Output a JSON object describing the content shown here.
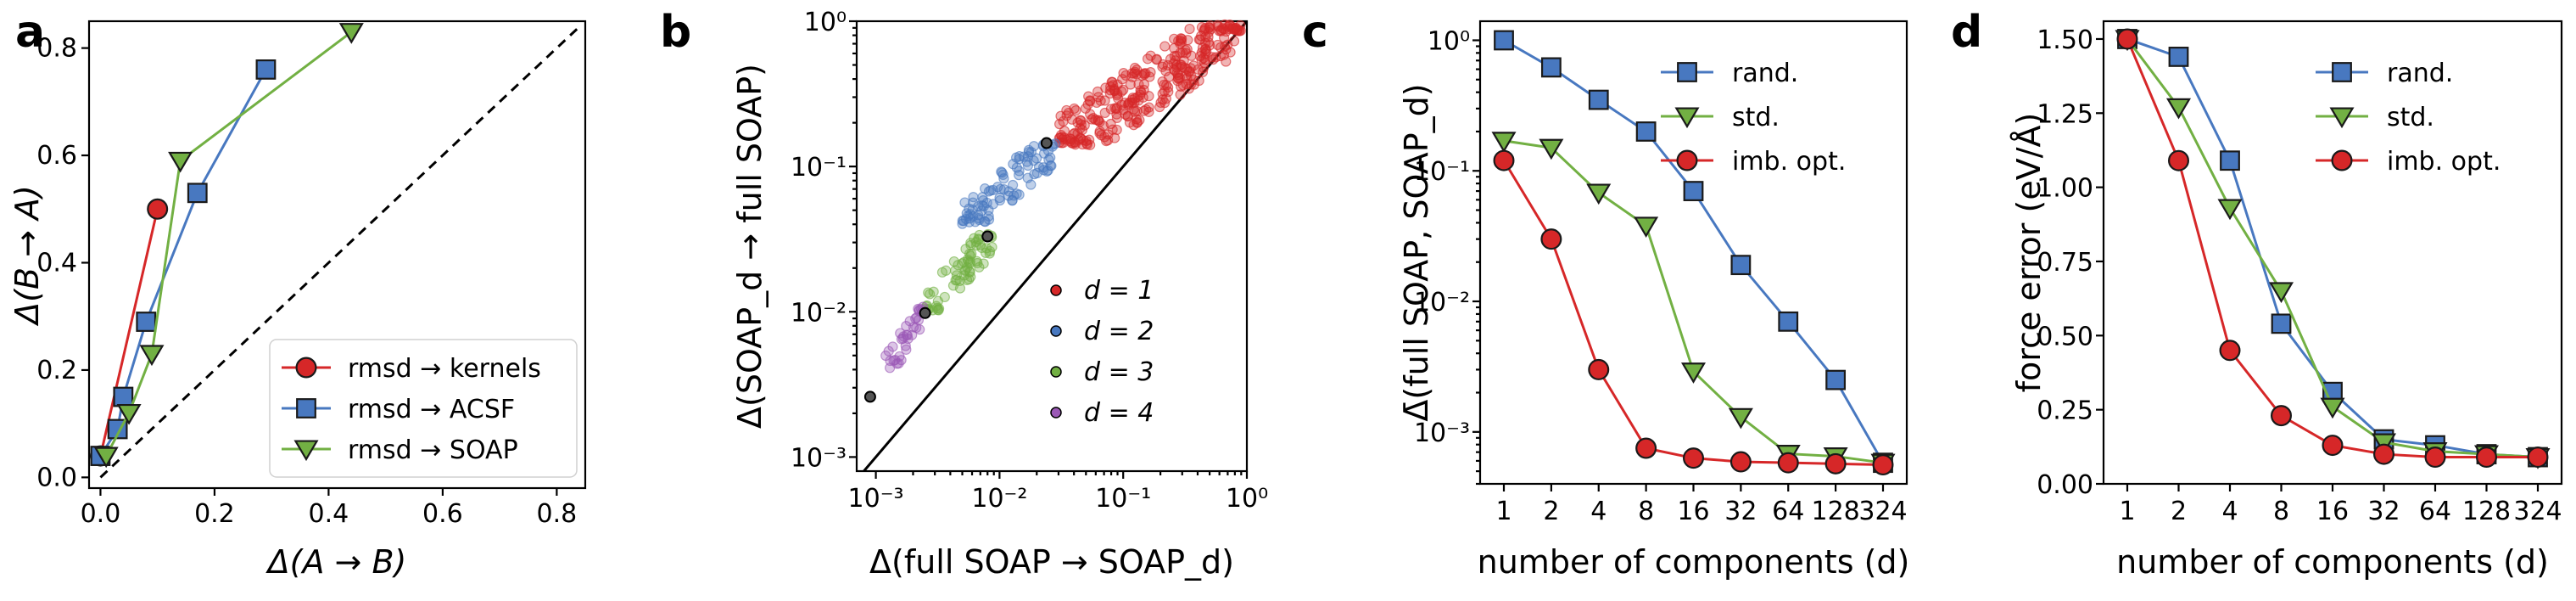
{
  "colors": {
    "red": "#d62728",
    "blue": "#4878c0",
    "green": "#72b043",
    "purple": "#9b59b6"
  },
  "chart_data": [
    {
      "id": "a",
      "type": "line",
      "panel_label": "a",
      "xlabel": "Δ(A → B)",
      "ylabel": "Δ(B → A)",
      "xlim": [
        -0.02,
        0.85
      ],
      "ylim": [
        -0.02,
        0.85
      ],
      "xticks": [
        "0.0",
        "0.2",
        "0.4",
        "0.6",
        "0.8"
      ],
      "yticks": [
        "0.0",
        "0.2",
        "0.4",
        "0.6",
        "0.8"
      ],
      "diagonal": true,
      "legend": {
        "position": "lower-right",
        "labels": [
          "rmsd → kernels",
          "rmsd → ACSF",
          "rmsd → SOAP"
        ]
      },
      "series": [
        {
          "name": "rmsd → kernels",
          "marker": "circle",
          "color": "red",
          "x": [
            0.0,
            0.1
          ],
          "y": [
            0.04,
            0.5
          ]
        },
        {
          "name": "rmsd → ACSF",
          "marker": "square",
          "color": "blue",
          "x": [
            0.0,
            0.03,
            0.04,
            0.08,
            0.17,
            0.29
          ],
          "y": [
            0.04,
            0.09,
            0.15,
            0.29,
            0.53,
            0.76
          ]
        },
        {
          "name": "rmsd → SOAP",
          "marker": "tri-down",
          "color": "green",
          "x": [
            0.01,
            0.05,
            0.09,
            0.14,
            0.44
          ],
          "y": [
            0.04,
            0.12,
            0.23,
            0.59,
            0.83
          ]
        }
      ]
    },
    {
      "id": "b",
      "type": "scatter",
      "panel_label": "b",
      "xlabel": "Δ(full SOAP → SOAP_d)",
      "ylabel": "Δ(SOAP_d → full SOAP)",
      "xscale": "log",
      "yscale": "log",
      "xlim": [
        0.0007,
        1.0
      ],
      "ylim": [
        0.0008,
        1.0
      ],
      "xticks": [
        "10⁻³",
        "10⁻²",
        "10⁻¹",
        "10⁰"
      ],
      "yticks": [
        "10⁻³",
        "10⁻²",
        "10⁻¹",
        "10⁰"
      ],
      "diagonal": true,
      "legend": {
        "position": "lower-right",
        "labels": [
          "d = 1",
          "d = 2",
          "d = 3",
          "d = 4"
        ]
      },
      "clusters": [
        {
          "name": "d = 1",
          "color": "red",
          "x_range": [
            0.03,
            0.9
          ],
          "y_range": [
            0.14,
            0.95
          ],
          "count": 300
        },
        {
          "name": "d = 2",
          "color": "blue",
          "x_range": [
            0.005,
            0.03
          ],
          "y_range": [
            0.04,
            0.15
          ],
          "count": 90
        },
        {
          "name": "d = 3",
          "color": "green",
          "x_range": [
            0.0025,
            0.009
          ],
          "y_range": [
            0.01,
            0.035
          ],
          "count": 70
        },
        {
          "name": "d = 4",
          "color": "purple",
          "x_range": [
            0.0012,
            0.0025
          ],
          "y_range": [
            0.004,
            0.011
          ],
          "count": 35
        }
      ],
      "highlighted_points": [
        {
          "x": 0.0009,
          "y": 0.0026
        },
        {
          "x": 0.0025,
          "y": 0.0098
        },
        {
          "x": 0.008,
          "y": 0.033
        },
        {
          "x": 0.024,
          "y": 0.145
        }
      ]
    },
    {
      "id": "c",
      "type": "line",
      "panel_label": "c",
      "xlabel": "number of components (d)",
      "ylabel": "Δ̄(full SOAP, SOAP_d)",
      "yscale": "log",
      "ylim": [
        0.0004,
        1.4
      ],
      "categories": [
        "1",
        "2",
        "4",
        "8",
        "16",
        "32",
        "64",
        "128",
        "324"
      ],
      "yticks": [
        "10⁰",
        "10⁻¹",
        "10⁻²",
        "10⁻³"
      ],
      "legend": {
        "position": "top-right",
        "labels": [
          "rand.",
          "std.",
          "imb. opt."
        ]
      },
      "series": [
        {
          "name": "rand.",
          "marker": "square",
          "color": "blue",
          "values": [
            1.0,
            0.62,
            0.35,
            0.2,
            0.07,
            0.019,
            0.007,
            0.0025,
            0.00058
          ]
        },
        {
          "name": "std.",
          "marker": "tri-down",
          "color": "green",
          "values": [
            0.17,
            0.15,
            0.068,
            0.038,
            0.0029,
            0.0013,
            0.00068,
            0.00065,
            0.00058
          ]
        },
        {
          "name": "imb. opt.",
          "marker": "circle",
          "color": "red",
          "values": [
            0.12,
            0.03,
            0.003,
            0.00075,
            0.00063,
            0.00059,
            0.00058,
            0.00057,
            0.00056
          ]
        }
      ]
    },
    {
      "id": "d",
      "type": "line",
      "panel_label": "d",
      "xlabel": "number of components (d)",
      "ylabel": "force error (eV/Å)",
      "ylim": [
        0.0,
        1.56
      ],
      "categories": [
        "1",
        "2",
        "4",
        "8",
        "16",
        "32",
        "64",
        "128",
        "324"
      ],
      "yticks": [
        "0.00",
        "0.25",
        "0.50",
        "0.75",
        "1.00",
        "1.25",
        "1.50"
      ],
      "legend": {
        "position": "top-right",
        "labels": [
          "rand.",
          "std.",
          "imb. opt."
        ]
      },
      "series": [
        {
          "name": "rand.",
          "marker": "square",
          "color": "blue",
          "values": [
            1.5,
            1.44,
            1.09,
            0.54,
            0.31,
            0.15,
            0.13,
            0.1,
            0.09
          ]
        },
        {
          "name": "std.",
          "marker": "tri-down",
          "color": "green",
          "values": [
            1.5,
            1.27,
            0.93,
            0.65,
            0.26,
            0.14,
            0.11,
            0.1,
            0.09
          ]
        },
        {
          "name": "imb. opt.",
          "marker": "circle",
          "color": "red",
          "values": [
            1.5,
            1.09,
            0.45,
            0.23,
            0.13,
            0.1,
            0.09,
            0.09,
            0.09
          ]
        }
      ]
    }
  ]
}
